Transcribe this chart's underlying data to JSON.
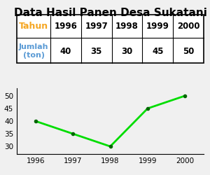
{
  "title": "Data Hasil Panen Desa Sukatani",
  "years": [
    1996,
    1997,
    1998,
    1999,
    2000
  ],
  "values": [
    40,
    35,
    30,
    45,
    50
  ],
  "table_header_tahun": "Tahun",
  "table_header_jumlah": "Jumlah\n(ton)",
  "tahun_color": "#f5a623",
  "jumlah_color": "#5b9bd5",
  "line_color": "#00dd00",
  "marker_color": "#006600",
  "yticks": [
    30,
    35,
    40,
    45,
    50
  ],
  "ylim": [
    27,
    53
  ],
  "background_color": "#f0f0f0",
  "title_fontsize": 11,
  "table_fontsize": 9
}
